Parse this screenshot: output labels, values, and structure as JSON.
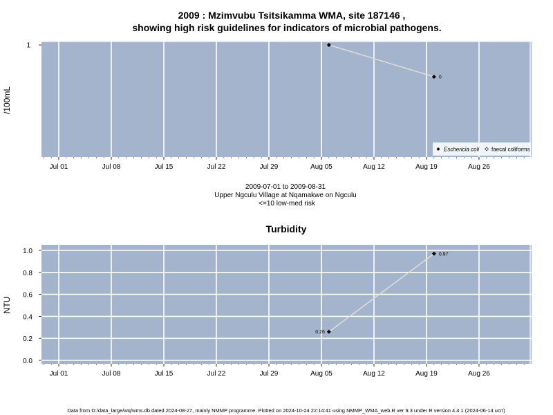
{
  "colors": {
    "plot_bg": "#a3b4cc",
    "grid_major": "#ffffff",
    "line": "#dcdcdc",
    "point": "#000000"
  },
  "chart_data": [
    {
      "id": "microbial",
      "type": "line",
      "title_line1": "2009 : Mzimvubu Tsitsikamma WMA, site 187146 ,",
      "title_line2": "showing high risk guidelines for indicators of microbial pathogens.",
      "ylabel": "/100mL",
      "xlabel": "",
      "x_ticks": [
        "Jul 01",
        "Jul 08",
        "Jul 15",
        "Jul 22",
        "Jul 29",
        "Aug 05",
        "Aug 12",
        "Aug 19",
        "Aug 26"
      ],
      "y_ticks": [
        "1"
      ],
      "subtitle": [
        "2009-07-01 to 2009-08-31",
        "Upper Ngculu Village at Nqamakwe on Ngculu",
        "<=10 low-med risk"
      ],
      "legend": {
        "placement": "bottom-right",
        "items": [
          {
            "label": "Eschericia coli",
            "marker": "filled-diamond",
            "italic": true
          },
          {
            "label": "faecal coliforms",
            "marker": "open-diamond",
            "italic": false
          }
        ]
      },
      "series": [
        {
          "name": "Eschericia coli",
          "points": [
            {
              "x": "2009-08-06",
              "y": 1,
              "label": ""
            },
            {
              "x": "2009-08-20",
              "y": 0,
              "label": "0"
            }
          ]
        }
      ]
    },
    {
      "id": "turbidity",
      "type": "line",
      "title": "Turbidity",
      "ylabel": "NTU",
      "xlabel": "",
      "ylim": [
        0,
        1
      ],
      "x_ticks": [
        "Jul 01",
        "Jul 08",
        "Jul 15",
        "Jul 22",
        "Jul 29",
        "Aug 05",
        "Aug 12",
        "Aug 19",
        "Aug 26"
      ],
      "y_ticks": [
        "0.0",
        "0.2",
        "0.4",
        "0.6",
        "0.8",
        "1.0"
      ],
      "series": [
        {
          "name": "",
          "points": [
            {
              "x": "2009-08-06",
              "y": 0.26,
              "label": "0.26"
            },
            {
              "x": "2009-08-20",
              "y": 0.97,
              "label": "0.97"
            }
          ]
        }
      ]
    }
  ],
  "footer": "Data from D:/data_large/wq/wms.db dated 2024-08-27, mainly NMMP programme. Plotted on 2024-10-24 22:14:41 using NMMP_WMA_web.R ver 9.3 under R version 4.4.1 (2024-06-14 ucrt)"
}
